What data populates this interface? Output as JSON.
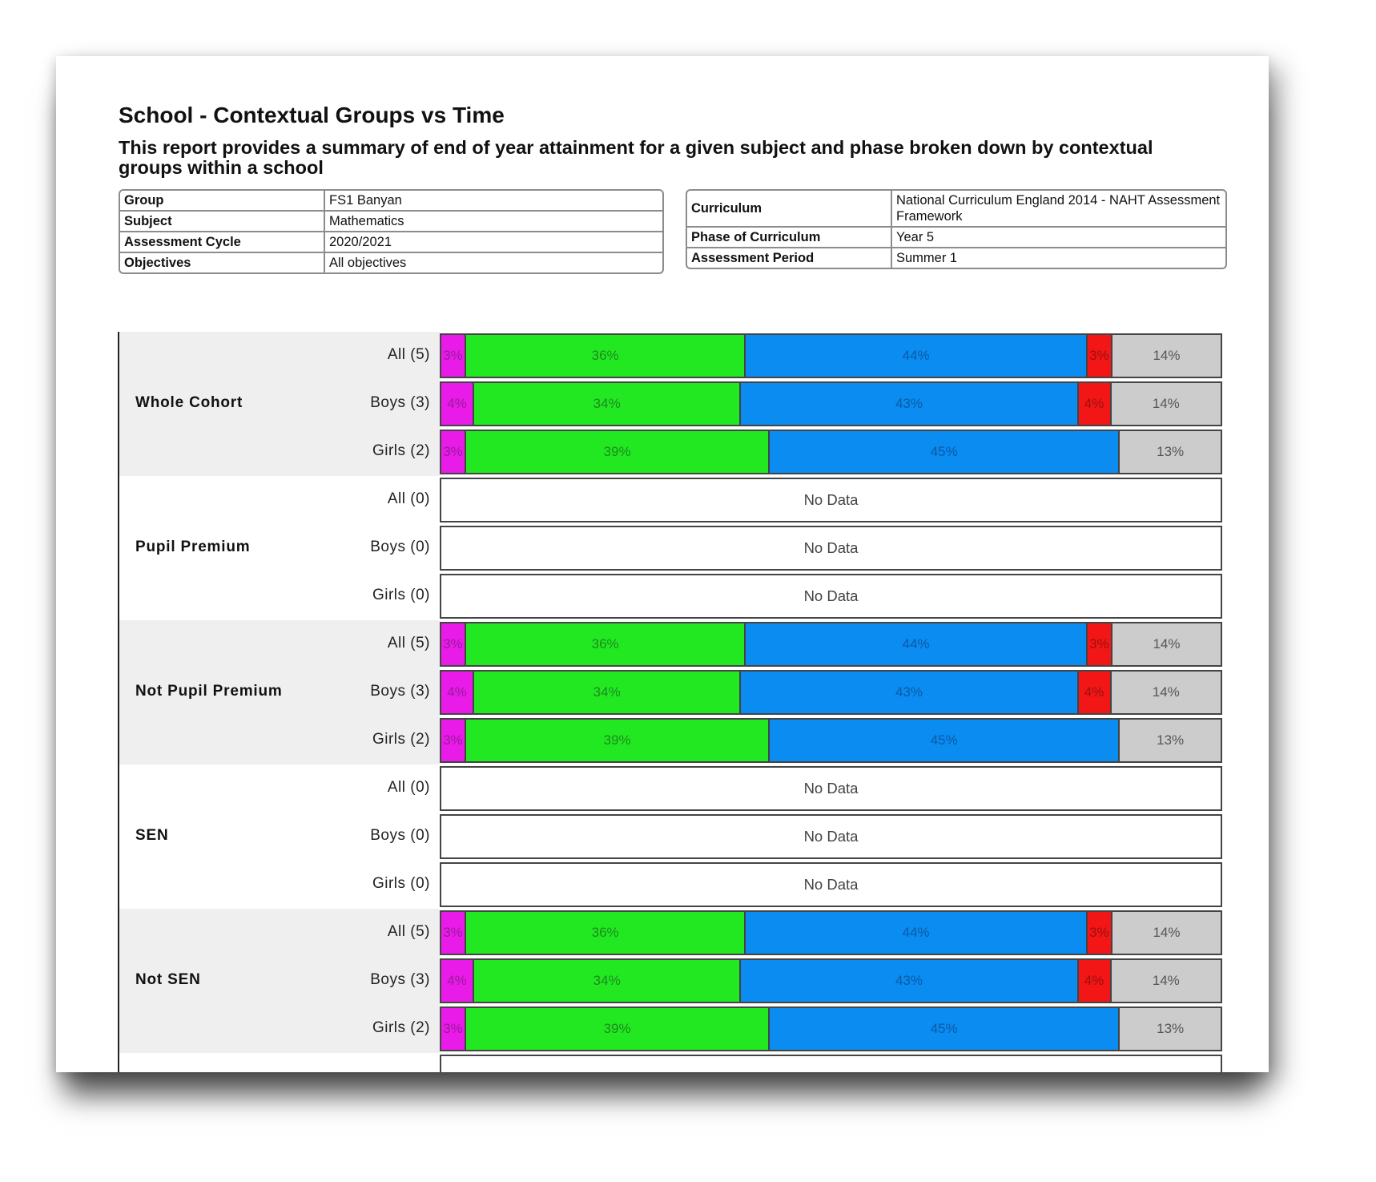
{
  "report": {
    "title": "School - Contextual Groups vs Time",
    "subtitle": "This report provides a summary of end of year attainment for a given subject and phase broken down by contextual groups within a school"
  },
  "info_left": [
    {
      "key": "Group",
      "value": "FS1 Banyan"
    },
    {
      "key": "Subject",
      "value": "Mathematics"
    },
    {
      "key": "Assessment Cycle",
      "value": "2020/2021"
    },
    {
      "key": "Objectives",
      "value": "All objectives"
    }
  ],
  "info_right": [
    {
      "key": "Curriculum",
      "value": "National Curriculum England 2014 - NAHT Assessment Framework"
    },
    {
      "key": "Phase of Curriculum",
      "value": "Year 5"
    },
    {
      "key": "Assessment Period",
      "value": "Summer 1"
    }
  ],
  "chart_data": {
    "type": "bar",
    "stacked": true,
    "orientation": "horizontal",
    "segment_colors": [
      "#e81be8",
      "#22e822",
      "#0a8cf0",
      "#f21616",
      "#cccccc"
    ],
    "segment_text_colors": [
      "#9a1a9a",
      "#1e8a1e",
      "#0a5aa8",
      "#9a1010",
      "#555555"
    ],
    "no_data_label": "No Data",
    "groups": [
      {
        "name": "Whole Cohort",
        "rows": [
          {
            "label": "All (5)",
            "values": [
              3,
              36,
              44,
              3,
              14
            ]
          },
          {
            "label": "Boys (3)",
            "values": [
              4,
              34,
              43,
              4,
              14
            ]
          },
          {
            "label": "Girls (2)",
            "values": [
              3,
              39,
              45,
              0,
              13
            ]
          }
        ]
      },
      {
        "name": "Pupil Premium",
        "rows": [
          {
            "label": "All (0)",
            "values": null
          },
          {
            "label": "Boys (0)",
            "values": null
          },
          {
            "label": "Girls (0)",
            "values": null
          }
        ]
      },
      {
        "name": "Not Pupil Premium",
        "rows": [
          {
            "label": "All (5)",
            "values": [
              3,
              36,
              44,
              3,
              14
            ]
          },
          {
            "label": "Boys (3)",
            "values": [
              4,
              34,
              43,
              4,
              14
            ]
          },
          {
            "label": "Girls (2)",
            "values": [
              3,
              39,
              45,
              0,
              13
            ]
          }
        ]
      },
      {
        "name": "SEN",
        "rows": [
          {
            "label": "All (0)",
            "values": null
          },
          {
            "label": "Boys (0)",
            "values": null
          },
          {
            "label": "Girls (0)",
            "values": null
          }
        ]
      },
      {
        "name": "Not SEN",
        "rows": [
          {
            "label": "All (5)",
            "values": [
              3,
              36,
              44,
              3,
              14
            ]
          },
          {
            "label": "Boys (3)",
            "values": [
              4,
              34,
              43,
              4,
              14
            ]
          },
          {
            "label": "Girls (2)",
            "values": [
              3,
              39,
              45,
              0,
              13
            ]
          }
        ]
      },
      {
        "name": "",
        "rows": [
          {
            "label": "",
            "values": null
          }
        ]
      }
    ]
  }
}
